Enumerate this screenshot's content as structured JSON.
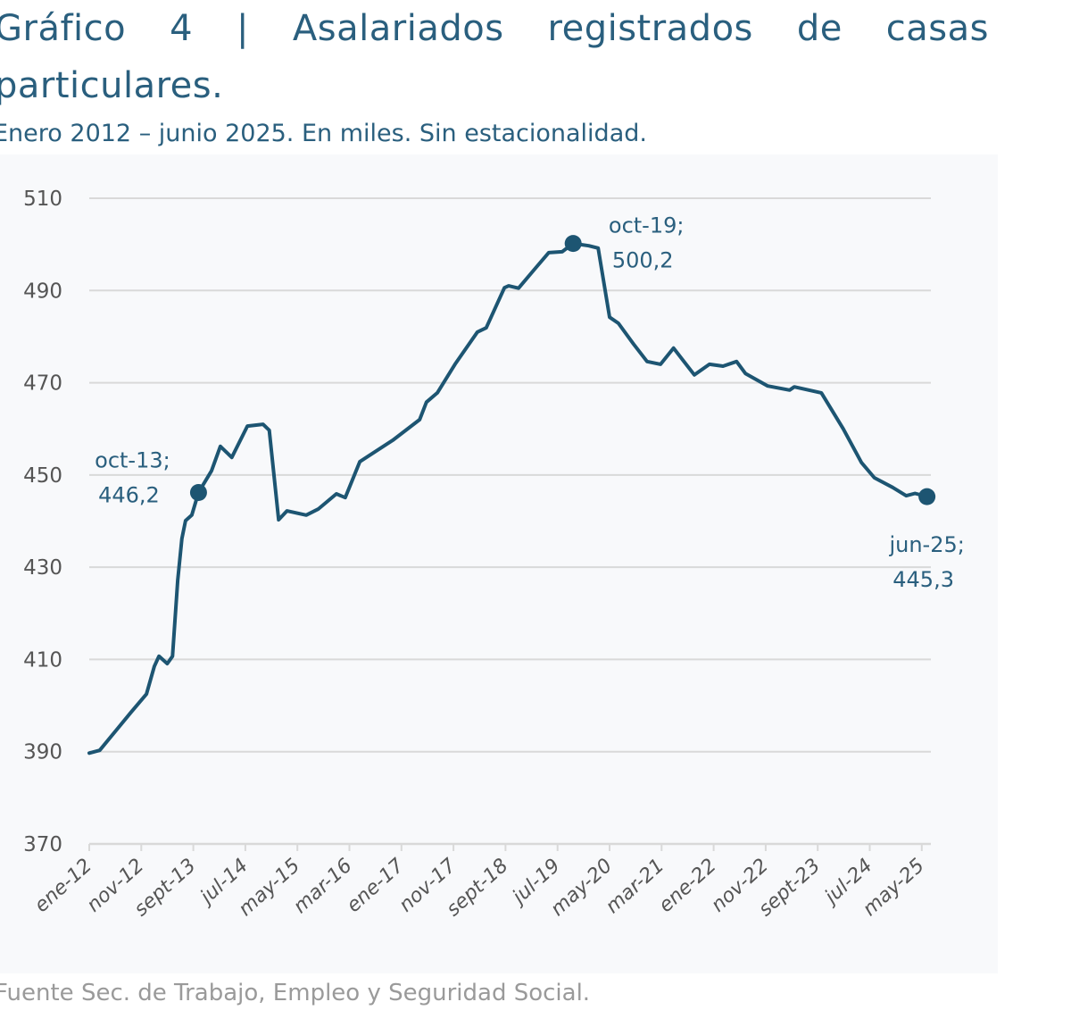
{
  "title_line1": "Gráfico 4 | Asalariados registrados de casas",
  "title_line2": "particulares.",
  "subtitle": "Enero 2012 – junio 2025. En miles. Sin estacionalidad.",
  "source": "Fuente Sec. de Trabajo, Empleo y Seguridad Social.",
  "colors": {
    "line": "#1d5572",
    "title": "#2a5f7e",
    "grid": "#d9d9d9",
    "axis_text": "#555555",
    "annotation": "#2a5f7e"
  },
  "chart_data": {
    "type": "line",
    "title": "Asalariados registrados de casas particulares",
    "xlabel": "",
    "ylabel": "Miles",
    "x_unit": "months since ene-12",
    "xlim": [
      0,
      161
    ],
    "ylim": [
      370,
      510
    ],
    "yticks": [
      370,
      390,
      410,
      430,
      450,
      470,
      490,
      510
    ],
    "xtick_labels": [
      "ene-12",
      "nov-12",
      "sept-13",
      "jul-14",
      "may-15",
      "mar-16",
      "ene-17",
      "nov-17",
      "sept-18",
      "jul-19",
      "may-20",
      "mar-21",
      "ene-22",
      "nov-22",
      "sept-23",
      "jul-24",
      "may-25"
    ],
    "xtick_step_months": 10,
    "grid": true,
    "series": [
      {
        "name": "Asalariados registrados de casas particulares",
        "points": [
          [
            0,
            389.7
          ],
          [
            2,
            390.3
          ],
          [
            8,
            398.5
          ],
          [
            11,
            402.5
          ],
          [
            12.5,
            408.5
          ],
          [
            13.4,
            410.7
          ],
          [
            15,
            409.1
          ],
          [
            16,
            410.7
          ],
          [
            17,
            427.1
          ],
          [
            17.8,
            436.2
          ],
          [
            18.5,
            440.1
          ],
          [
            19.7,
            441.3
          ],
          [
            21,
            446.2
          ],
          [
            23.5,
            450.9
          ],
          [
            25.2,
            456.2
          ],
          [
            27.4,
            453.8
          ],
          [
            30.4,
            460.6
          ],
          [
            33.4,
            461.0
          ],
          [
            34.6,
            459.7
          ],
          [
            36.4,
            440.3
          ],
          [
            38,
            442.2
          ],
          [
            41.7,
            441.3
          ],
          [
            44,
            442.6
          ],
          [
            47.5,
            445.9
          ],
          [
            49.2,
            445.1
          ],
          [
            52,
            452.9
          ],
          [
            58.3,
            457.5
          ],
          [
            63.5,
            462.0
          ],
          [
            64.8,
            465.8
          ],
          [
            66.9,
            467.8
          ],
          [
            70.3,
            474.0
          ],
          [
            74.6,
            481.0
          ],
          [
            76.3,
            481.9
          ],
          [
            79.8,
            490.6
          ],
          [
            80.6,
            491.0
          ],
          [
            82.5,
            490.5
          ],
          [
            85.8,
            494.9
          ],
          [
            88.3,
            498.2
          ],
          [
            90.9,
            498.4
          ],
          [
            93,
            500.2
          ],
          [
            96,
            499.7
          ],
          [
            97.8,
            499.2
          ],
          [
            100,
            484.2
          ],
          [
            101.7,
            482.9
          ],
          [
            104.6,
            478.4
          ],
          [
            107.2,
            474.6
          ],
          [
            109.8,
            474.0
          ],
          [
            112.3,
            477.5
          ],
          [
            116.3,
            471.7
          ],
          [
            119.2,
            474.0
          ],
          [
            121.8,
            473.6
          ],
          [
            124.4,
            474.6
          ],
          [
            126.1,
            472.0
          ],
          [
            130.4,
            469.3
          ],
          [
            134.6,
            468.4
          ],
          [
            135.5,
            469.1
          ],
          [
            140.7,
            467.8
          ],
          [
            144.9,
            460.0
          ],
          [
            148.4,
            452.7
          ],
          [
            150.9,
            449.4
          ],
          [
            154.4,
            447.3
          ],
          [
            157,
            445.5
          ],
          [
            158.7,
            446.0
          ],
          [
            161,
            445.3
          ]
        ]
      }
    ],
    "annotations": [
      {
        "month": 21,
        "value": 446.2,
        "label_date": "oct-13;",
        "label_value": "446,2",
        "position": "upper-left"
      },
      {
        "month": 93,
        "value": 500.2,
        "label_date": "oct-19;",
        "label_value": "500,2",
        "position": "right"
      },
      {
        "month": 161,
        "value": 445.3,
        "label_date": "jun-25;",
        "label_value": "445,3",
        "position": "below"
      }
    ]
  }
}
